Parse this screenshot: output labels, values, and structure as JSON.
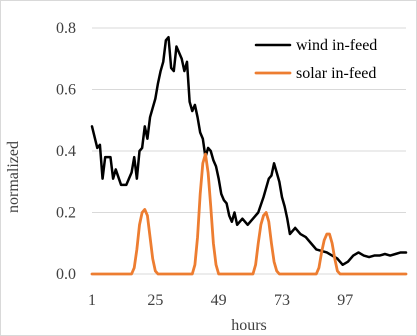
{
  "chart_data": {
    "type": "line",
    "xlabel": "hours",
    "ylabel": "normalized",
    "xlim": [
      1,
      120
    ],
    "ylim": [
      0,
      0.8
    ],
    "x_ticks": [
      1,
      25,
      49,
      73,
      97
    ],
    "y_ticks": [
      0.0,
      0.2,
      0.4,
      0.6,
      0.8
    ],
    "y_tick_labels": [
      "0.0",
      "0.2",
      "0.4",
      "0.6",
      "0.8"
    ],
    "grid": true,
    "legend_position": "top-right",
    "series": [
      {
        "name": "wind in-feed",
        "color": "#000000",
        "points": [
          [
            1,
            0.48
          ],
          [
            3,
            0.41
          ],
          [
            4,
            0.42
          ],
          [
            5,
            0.31
          ],
          [
            6,
            0.38
          ],
          [
            8,
            0.38
          ],
          [
            9,
            0.31
          ],
          [
            10,
            0.34
          ],
          [
            12,
            0.29
          ],
          [
            14,
            0.29
          ],
          [
            16,
            0.33
          ],
          [
            17,
            0.38
          ],
          [
            18,
            0.31
          ],
          [
            19,
            0.4
          ],
          [
            20,
            0.41
          ],
          [
            21,
            0.48
          ],
          [
            22,
            0.44
          ],
          [
            23,
            0.51
          ],
          [
            24,
            0.54
          ],
          [
            25,
            0.57
          ],
          [
            26,
            0.62
          ],
          [
            27,
            0.66
          ],
          [
            28,
            0.69
          ],
          [
            29,
            0.76
          ],
          [
            30,
            0.77
          ],
          [
            31,
            0.67
          ],
          [
            32,
            0.66
          ],
          [
            33,
            0.74
          ],
          [
            34,
            0.72
          ],
          [
            35,
            0.7
          ],
          [
            36,
            0.66
          ],
          [
            37,
            0.69
          ],
          [
            38,
            0.56
          ],
          [
            39,
            0.53
          ],
          [
            40,
            0.55
          ],
          [
            41,
            0.51
          ],
          [
            42,
            0.46
          ],
          [
            43,
            0.44
          ],
          [
            44,
            0.38
          ],
          [
            45,
            0.41
          ],
          [
            46,
            0.4
          ],
          [
            47,
            0.37
          ],
          [
            48,
            0.35
          ],
          [
            49,
            0.31
          ],
          [
            50,
            0.26
          ],
          [
            51,
            0.24
          ],
          [
            52,
            0.23
          ],
          [
            53,
            0.19
          ],
          [
            54,
            0.17
          ],
          [
            55,
            0.2
          ],
          [
            56,
            0.16
          ],
          [
            58,
            0.18
          ],
          [
            60,
            0.16
          ],
          [
            62,
            0.18
          ],
          [
            64,
            0.2
          ],
          [
            66,
            0.25
          ],
          [
            68,
            0.31
          ],
          [
            69,
            0.32
          ],
          [
            70,
            0.36
          ],
          [
            71,
            0.33
          ],
          [
            72,
            0.3
          ],
          [
            73,
            0.25
          ],
          [
            74,
            0.22
          ],
          [
            75,
            0.18
          ],
          [
            76,
            0.13
          ],
          [
            78,
            0.15
          ],
          [
            80,
            0.13
          ],
          [
            82,
            0.12
          ],
          [
            84,
            0.1
          ],
          [
            86,
            0.08
          ],
          [
            88,
            0.075
          ],
          [
            90,
            0.07
          ],
          [
            92,
            0.06
          ],
          [
            94,
            0.05
          ],
          [
            96,
            0.03
          ],
          [
            98,
            0.04
          ],
          [
            100,
            0.06
          ],
          [
            102,
            0.07
          ],
          [
            104,
            0.06
          ],
          [
            106,
            0.055
          ],
          [
            108,
            0.06
          ],
          [
            110,
            0.06
          ],
          [
            112,
            0.065
          ],
          [
            114,
            0.06
          ],
          [
            116,
            0.065
          ],
          [
            118,
            0.07
          ],
          [
            120,
            0.07
          ]
        ]
      },
      {
        "name": "solar in-feed",
        "color": "#ed7d31",
        "points": [
          [
            1,
            0.0
          ],
          [
            12,
            0.0
          ],
          [
            16,
            0.0
          ],
          [
            17,
            0.02
          ],
          [
            18,
            0.08
          ],
          [
            19,
            0.16
          ],
          [
            20,
            0.2
          ],
          [
            21,
            0.21
          ],
          [
            22,
            0.19
          ],
          [
            23,
            0.12
          ],
          [
            24,
            0.05
          ],
          [
            25,
            0.01
          ],
          [
            26,
            0.0
          ],
          [
            36,
            0.0
          ],
          [
            39,
            0.0
          ],
          [
            40,
            0.03
          ],
          [
            41,
            0.12
          ],
          [
            42,
            0.26
          ],
          [
            43,
            0.36
          ],
          [
            44,
            0.39
          ],
          [
            45,
            0.33
          ],
          [
            46,
            0.22
          ],
          [
            47,
            0.1
          ],
          [
            48,
            0.03
          ],
          [
            49,
            0.0
          ],
          [
            60,
            0.0
          ],
          [
            62,
            0.0
          ],
          [
            63,
            0.03
          ],
          [
            64,
            0.1
          ],
          [
            65,
            0.16
          ],
          [
            66,
            0.19
          ],
          [
            67,
            0.2
          ],
          [
            68,
            0.17
          ],
          [
            69,
            0.1
          ],
          [
            70,
            0.04
          ],
          [
            71,
            0.01
          ],
          [
            72,
            0.0
          ],
          [
            84,
            0.0
          ],
          [
            86,
            0.0
          ],
          [
            87,
            0.02
          ],
          [
            88,
            0.07
          ],
          [
            89,
            0.11
          ],
          [
            90,
            0.13
          ],
          [
            91,
            0.13
          ],
          [
            92,
            0.1
          ],
          [
            93,
            0.05
          ],
          [
            94,
            0.01
          ],
          [
            95,
            0.0
          ],
          [
            120,
            0.0
          ]
        ]
      }
    ]
  }
}
